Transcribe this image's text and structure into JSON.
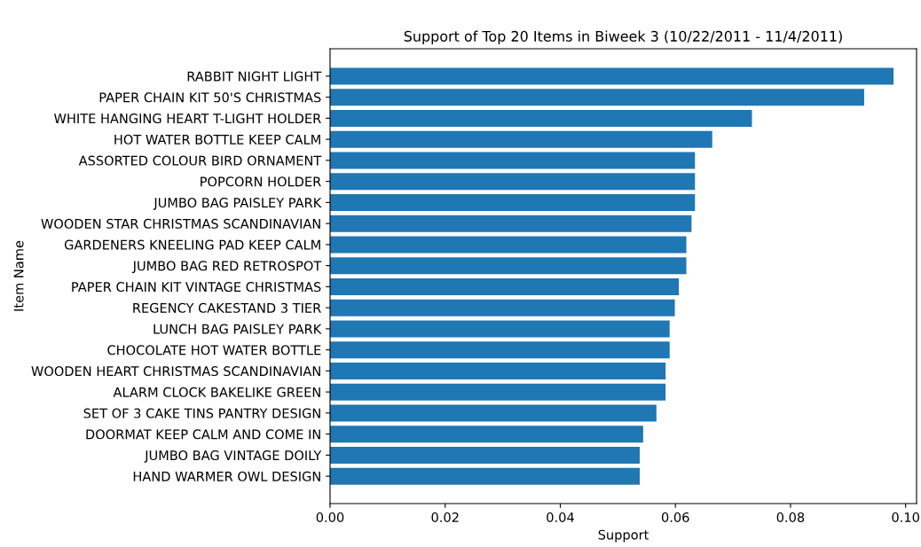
{
  "chart_data": {
    "type": "bar",
    "orientation": "horizontal",
    "title": "Support of Top 20 Items in Biweek 3 (10/22/2011 - 11/4/2011)",
    "xlabel": "Support",
    "ylabel": "Item Name",
    "categories": [
      "RABBIT NIGHT LIGHT",
      "PAPER CHAIN KIT 50'S CHRISTMAS",
      "WHITE HANGING HEART T-LIGHT HOLDER",
      "HOT WATER BOTTLE KEEP CALM",
      "ASSORTED COLOUR BIRD ORNAMENT",
      "POPCORN HOLDER",
      "JUMBO BAG PAISLEY PARK",
      "WOODEN STAR CHRISTMAS SCANDINAVIAN",
      "GARDENERS KNEELING PAD KEEP CALM",
      "JUMBO BAG RED RETROSPOT",
      "PAPER CHAIN KIT VINTAGE CHRISTMAS",
      "REGENCY CAKESTAND 3 TIER",
      "LUNCH BAG PAISLEY PARK",
      "CHOCOLATE HOT WATER BOTTLE",
      "WOODEN HEART CHRISTMAS SCANDINAVIAN",
      "ALARM CLOCK BAKELIKE GREEN",
      "SET OF 3 CAKE TINS PANTRY DESIGN",
      "DOORMAT KEEP CALM AND COME IN",
      "JUMBO BAG VINTAGE DOILY",
      "HAND WARMER OWL DESIGN"
    ],
    "values": [
      0.0979,
      0.0928,
      0.0733,
      0.0664,
      0.0634,
      0.0634,
      0.0634,
      0.0628,
      0.0619,
      0.0619,
      0.0606,
      0.0599,
      0.059,
      0.059,
      0.0583,
      0.0583,
      0.0567,
      0.0544,
      0.0538,
      0.0538
    ],
    "color": "#1f77b4",
    "xlim": [
      0,
      0.1019
    ],
    "xticks": [
      {
        "value": 0,
        "label": "0.00"
      },
      {
        "value": 0.02,
        "label": "0.02"
      },
      {
        "value": 0.04,
        "label": "0.04"
      },
      {
        "value": 0.06,
        "label": "0.06"
      },
      {
        "value": 0.08,
        "label": "0.08"
      },
      {
        "value": 0.1,
        "label": "0.10"
      }
    ],
    "grid": false
  }
}
